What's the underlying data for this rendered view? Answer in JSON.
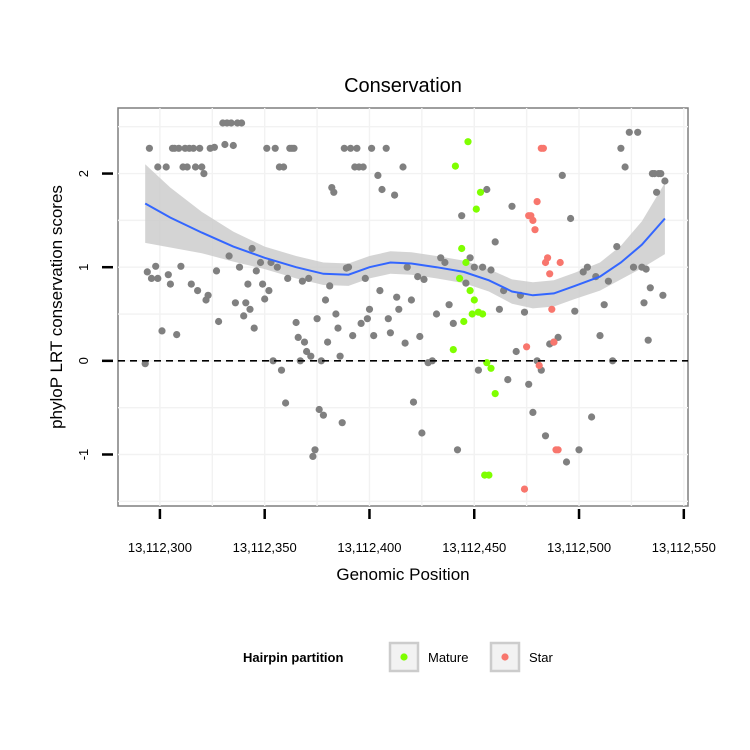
{
  "chart_data": {
    "type": "scatter",
    "title": "Conservation",
    "xlabel": "Genomic Position",
    "ylabel": "phyloP LRT conservation scores",
    "xlim": [
      13112280,
      13112552
    ],
    "ylim": [
      -1.55,
      2.7
    ],
    "x_ticks": [
      13112300,
      13112350,
      13112400,
      13112450,
      13112500,
      13112550
    ],
    "x_tick_labels": [
      "13,112,300",
      "13,112,350",
      "13,112,400",
      "13,112,450",
      "13,112,500",
      "13,112,550"
    ],
    "y_ticks": [
      -1,
      0,
      1,
      2
    ],
    "y_tick_labels": [
      "-1",
      "0",
      "1",
      "2"
    ],
    "reference_line": {
      "y": 0,
      "style": "dashed"
    },
    "legend": {
      "title": "Hairpin partition",
      "position": "bottom",
      "entries": [
        {
          "label": "Mature",
          "color": "#7FFF00"
        },
        {
          "label": "Star",
          "color": "#F8766D"
        }
      ]
    },
    "colors": {
      "other": "#808080",
      "Mature": "#7FFF00",
      "Star": "#F8766D",
      "smooth": "#3366FF",
      "band": "#cccccc"
    },
    "series": [
      {
        "name": "Other",
        "points": [
          [
            13112293,
            -0.03
          ],
          [
            13112294,
            0.95
          ],
          [
            13112296,
            0.88
          ],
          [
            13112298,
            1.01
          ],
          [
            13112299,
            0.88
          ],
          [
            13112295,
            2.27
          ],
          [
            13112299,
            2.07
          ],
          [
            13112301,
            0.32
          ],
          [
            13112303,
            2.07
          ],
          [
            13112304,
            0.92
          ],
          [
            13112305,
            0.82
          ],
          [
            13112306,
            2.27
          ],
          [
            13112307,
            2.27
          ],
          [
            13112308,
            0.28
          ],
          [
            13112309,
            2.27
          ],
          [
            13112310,
            1.01
          ],
          [
            13112311,
            2.07
          ],
          [
            13112312,
            2.27
          ],
          [
            13112313,
            2.07
          ],
          [
            13112314,
            2.27
          ],
          [
            13112315,
            0.82
          ],
          [
            13112316,
            2.27
          ],
          [
            13112317,
            2.07
          ],
          [
            13112318,
            0.75
          ],
          [
            13112319,
            2.27
          ],
          [
            13112320,
            2.07
          ],
          [
            13112321,
            2.0
          ],
          [
            13112322,
            0.65
          ],
          [
            13112323,
            0.7
          ],
          [
            13112324,
            2.27
          ],
          [
            13112326,
            2.28
          ],
          [
            13112327,
            0.96
          ],
          [
            13112328,
            0.42
          ],
          [
            13112330,
            2.54
          ],
          [
            13112331,
            2.31
          ],
          [
            13112332,
            2.54
          ],
          [
            13112333,
            1.12
          ],
          [
            13112334,
            2.54
          ],
          [
            13112335,
            2.3
          ],
          [
            13112336,
            0.62
          ],
          [
            13112337,
            2.54
          ],
          [
            13112338,
            1.0
          ],
          [
            13112339,
            2.54
          ],
          [
            13112340,
            0.48
          ],
          [
            13112341,
            0.62
          ],
          [
            13112342,
            0.82
          ],
          [
            13112343,
            0.55
          ],
          [
            13112344,
            1.2
          ],
          [
            13112345,
            0.35
          ],
          [
            13112346,
            0.96
          ],
          [
            13112348,
            1.05
          ],
          [
            13112349,
            0.82
          ],
          [
            13112350,
            0.66
          ],
          [
            13112351,
            2.27
          ],
          [
            13112352,
            0.75
          ],
          [
            13112353,
            1.05
          ],
          [
            13112354,
            0.0
          ],
          [
            13112355,
            2.27
          ],
          [
            13112356,
            1.0
          ],
          [
            13112357,
            2.07
          ],
          [
            13112358,
            -0.1
          ],
          [
            13112359,
            2.07
          ],
          [
            13112360,
            -0.45
          ],
          [
            13112361,
            0.88
          ],
          [
            13112362,
            2.27
          ],
          [
            13112363,
            2.27
          ],
          [
            13112364,
            2.27
          ],
          [
            13112365,
            0.41
          ],
          [
            13112366,
            0.25
          ],
          [
            13112367,
            0.0
          ],
          [
            13112368,
            0.85
          ],
          [
            13112369,
            0.2
          ],
          [
            13112370,
            0.1
          ],
          [
            13112371,
            0.88
          ],
          [
            13112372,
            0.05
          ],
          [
            13112373,
            -1.02
          ],
          [
            13112374,
            -0.95
          ],
          [
            13112375,
            0.45
          ],
          [
            13112376,
            -0.52
          ],
          [
            13112377,
            0.0
          ],
          [
            13112378,
            -0.58
          ],
          [
            13112379,
            0.65
          ],
          [
            13112380,
            0.2
          ],
          [
            13112381,
            0.8
          ],
          [
            13112382,
            1.85
          ],
          [
            13112383,
            1.8
          ],
          [
            13112384,
            0.5
          ],
          [
            13112385,
            0.35
          ],
          [
            13112386,
            0.05
          ],
          [
            13112387,
            -0.66
          ],
          [
            13112388,
            2.27
          ],
          [
            13112389,
            0.99
          ],
          [
            13112390,
            1.0
          ],
          [
            13112391,
            2.27
          ],
          [
            13112392,
            0.27
          ],
          [
            13112393,
            2.07
          ],
          [
            13112394,
            2.27
          ],
          [
            13112395,
            2.07
          ],
          [
            13112396,
            0.4
          ],
          [
            13112397,
            2.07
          ],
          [
            13112398,
            0.88
          ],
          [
            13112399,
            0.45
          ],
          [
            13112400,
            0.55
          ],
          [
            13112401,
            2.27
          ],
          [
            13112402,
            0.27
          ],
          [
            13112404,
            1.98
          ],
          [
            13112405,
            0.75
          ],
          [
            13112406,
            1.83
          ],
          [
            13112408,
            2.27
          ],
          [
            13112409,
            0.45
          ],
          [
            13112410,
            0.3
          ],
          [
            13112412,
            1.77
          ],
          [
            13112413,
            0.68
          ],
          [
            13112414,
            0.55
          ],
          [
            13112416,
            2.07
          ],
          [
            13112417,
            0.19
          ],
          [
            13112418,
            1.0
          ],
          [
            13112420,
            0.65
          ],
          [
            13112421,
            -0.44
          ],
          [
            13112423,
            0.9
          ],
          [
            13112424,
            0.26
          ],
          [
            13112425,
            -0.77
          ],
          [
            13112426,
            0.87
          ],
          [
            13112428,
            -0.02
          ],
          [
            13112430,
            0.0
          ],
          [
            13112432,
            0.5
          ],
          [
            13112434,
            1.1
          ],
          [
            13112436,
            1.05
          ],
          [
            13112438,
            0.6
          ],
          [
            13112440,
            0.4
          ],
          [
            13112442,
            -0.95
          ],
          [
            13112444,
            1.55
          ],
          [
            13112446,
            0.83
          ],
          [
            13112448,
            1.1
          ],
          [
            13112450,
            1.0
          ],
          [
            13112452,
            -0.1
          ],
          [
            13112454,
            1.0
          ],
          [
            13112456,
            1.83
          ],
          [
            13112458,
            0.97
          ],
          [
            13112460,
            1.27
          ],
          [
            13112462,
            0.55
          ],
          [
            13112464,
            0.75
          ],
          [
            13112466,
            -0.2
          ],
          [
            13112468,
            1.65
          ],
          [
            13112470,
            0.1
          ],
          [
            13112472,
            0.7
          ],
          [
            13112474,
            0.52
          ],
          [
            13112476,
            -0.25
          ],
          [
            13112478,
            -0.55
          ],
          [
            13112480,
            0.0
          ],
          [
            13112482,
            -0.1
          ],
          [
            13112484,
            -0.8
          ],
          [
            13112486,
            0.18
          ],
          [
            13112488,
            0.2
          ],
          [
            13112490,
            0.25
          ],
          [
            13112492,
            1.98
          ],
          [
            13112494,
            -1.08
          ],
          [
            13112496,
            1.52
          ],
          [
            13112498,
            0.53
          ],
          [
            13112500,
            -0.95
          ],
          [
            13112502,
            0.95
          ],
          [
            13112504,
            1.0
          ],
          [
            13112506,
            -0.6
          ],
          [
            13112508,
            0.9
          ],
          [
            13112510,
            0.27
          ],
          [
            13112512,
            0.6
          ],
          [
            13112514,
            0.85
          ],
          [
            13112516,
            0.0
          ],
          [
            13112518,
            1.22
          ],
          [
            13112520,
            2.27
          ],
          [
            13112522,
            2.07
          ],
          [
            13112524,
            2.44
          ],
          [
            13112526,
            1.0
          ],
          [
            13112528,
            2.44
          ],
          [
            13112530,
            1.0
          ],
          [
            13112531,
            0.62
          ],
          [
            13112532,
            0.98
          ],
          [
            13112533,
            0.22
          ],
          [
            13112534,
            0.78
          ],
          [
            13112535,
            2.0
          ],
          [
            13112536,
            2.0
          ],
          [
            13112537,
            1.8
          ],
          [
            13112538,
            2.0
          ],
          [
            13112539,
            2.0
          ],
          [
            13112540,
            0.7
          ],
          [
            13112541,
            1.92
          ]
        ]
      },
      {
        "name": "Mature",
        "points": [
          [
            13112441,
            2.08
          ],
          [
            13112447,
            2.34
          ],
          [
            13112444,
            1.2
          ],
          [
            13112446,
            1.05
          ],
          [
            13112448,
            0.75
          ],
          [
            13112450,
            0.65
          ],
          [
            13112452,
            0.52
          ],
          [
            13112454,
            0.5
          ],
          [
            13112456,
            -0.02
          ],
          [
            13112458,
            -0.08
          ],
          [
            13112460,
            -0.35
          ],
          [
            13112443,
            0.88
          ],
          [
            13112440,
            0.12
          ],
          [
            13112445,
            0.42
          ],
          [
            13112449,
            0.5
          ],
          [
            13112451,
            1.62
          ],
          [
            13112453,
            1.8
          ],
          [
            13112455,
            -1.22
          ],
          [
            13112457,
            -1.22
          ]
        ]
      },
      {
        "name": "Star",
        "points": [
          [
            13112474,
            -1.37
          ],
          [
            13112476,
            1.55
          ],
          [
            13112477,
            1.55
          ],
          [
            13112478,
            1.5
          ],
          [
            13112479,
            1.4
          ],
          [
            13112480,
            1.7
          ],
          [
            13112481,
            -0.05
          ],
          [
            13112482,
            2.27
          ],
          [
            13112483,
            2.27
          ],
          [
            13112484,
            1.05
          ],
          [
            13112485,
            1.1
          ],
          [
            13112486,
            0.93
          ],
          [
            13112487,
            0.55
          ],
          [
            13112488,
            0.2
          ],
          [
            13112489,
            -0.95
          ],
          [
            13112490,
            -0.95
          ],
          [
            13112475,
            0.15
          ],
          [
            13112491,
            1.05
          ]
        ]
      }
    ],
    "smooth": [
      [
        13112293,
        1.68
      ],
      [
        13112305,
        1.53
      ],
      [
        13112320,
        1.37
      ],
      [
        13112335,
        1.22
      ],
      [
        13112350,
        1.1
      ],
      [
        13112365,
        1.0
      ],
      [
        13112378,
        0.93
      ],
      [
        13112390,
        0.92
      ],
      [
        13112400,
        1.0
      ],
      [
        13112410,
        1.05
      ],
      [
        13112420,
        1.04
      ],
      [
        13112432,
        1.0
      ],
      [
        13112445,
        0.95
      ],
      [
        13112457,
        0.86
      ],
      [
        13112468,
        0.74
      ],
      [
        13112478,
        0.7
      ],
      [
        13112488,
        0.72
      ],
      [
        13112498,
        0.8
      ],
      [
        13112510,
        0.9
      ],
      [
        13112520,
        1.05
      ],
      [
        13112530,
        1.24
      ],
      [
        13112541,
        1.52
      ]
    ],
    "band_halfwidth": [
      0.42,
      0.32,
      0.22,
      0.16,
      0.12,
      0.12,
      0.12,
      0.12,
      0.12,
      0.12,
      0.12,
      0.12,
      0.12,
      0.12,
      0.13,
      0.14,
      0.14,
      0.14,
      0.15,
      0.18,
      0.25,
      0.38
    ]
  }
}
